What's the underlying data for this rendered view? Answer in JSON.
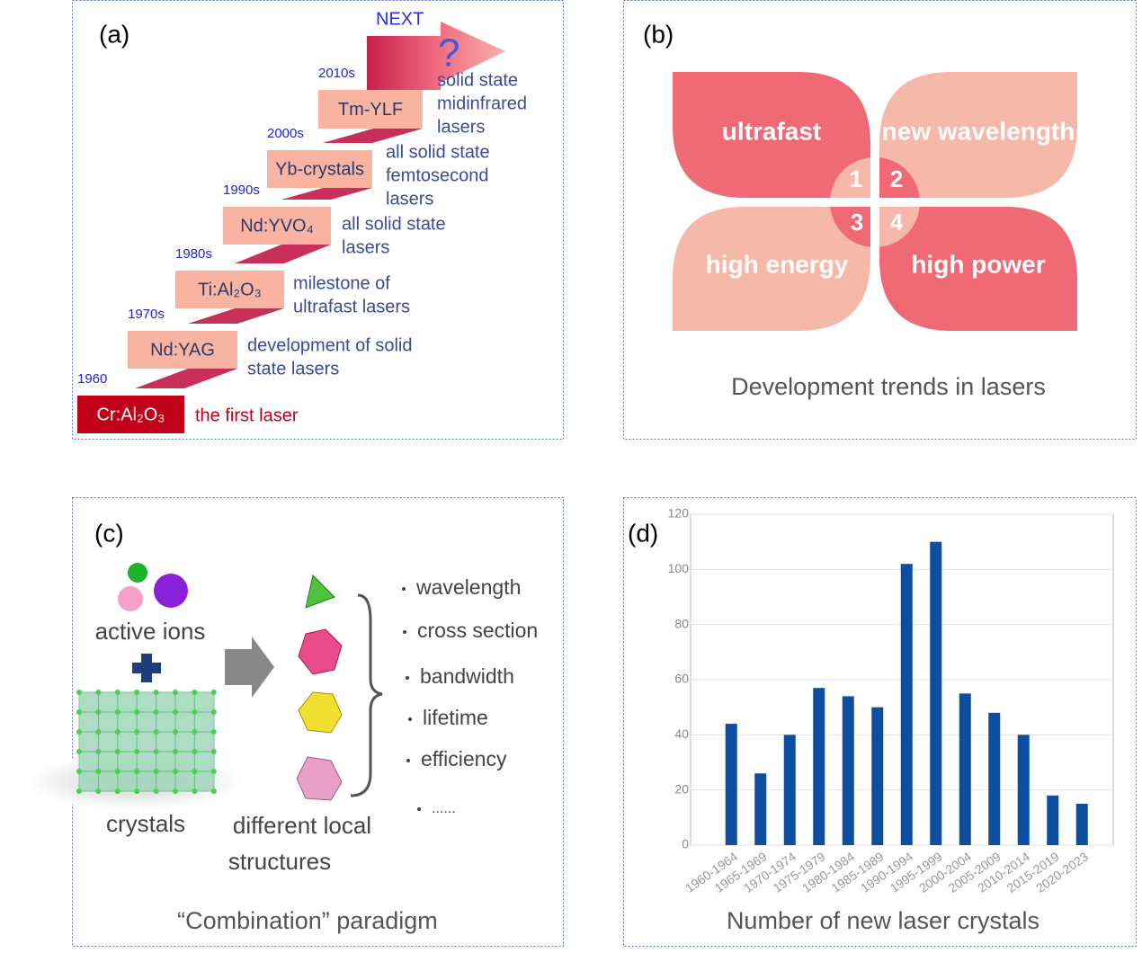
{
  "panels": {
    "a": {
      "label": "(a)",
      "next": "NEXT",
      "question": "?",
      "steps": [
        {
          "year": "1960",
          "name": "Cr:Al₂O₃",
          "desc": [
            "the first laser"
          ]
        },
        {
          "year": "1970s",
          "name": "Nd:YAG",
          "desc": [
            "development of solid",
            "state lasers"
          ]
        },
        {
          "year": "1980s",
          "name": "Ti:Al₂O₃",
          "desc": [
            "milestone of",
            "ultrafast lasers"
          ]
        },
        {
          "year": "1990s",
          "name": "Nd:YVO₄",
          "desc": [
            "all solid state",
            "lasers"
          ]
        },
        {
          "year": "2000s",
          "name": "Yb-crystals",
          "desc": [
            "all solid state",
            "femtosecond",
            "lasers"
          ]
        },
        {
          "year": "2010s",
          "name": "Tm-YLF",
          "desc": [
            "solid state",
            "midinfrared",
            "lasers"
          ]
        }
      ]
    },
    "b": {
      "label": "(b)",
      "petals": [
        "ultrafast",
        "new wavelength",
        "high energy",
        "high power"
      ],
      "numbers": [
        "1",
        "2",
        "3",
        "4"
      ],
      "caption": "Development trends in lasers"
    },
    "c": {
      "label": "(c)",
      "ions": "active ions",
      "crystals": "crystals",
      "structures": [
        "different local",
        "structures"
      ],
      "properties": [
        "wavelength",
        "cross section",
        "bandwidth",
        "lifetime",
        "efficiency",
        "......"
      ],
      "caption": "“Combination” paradigm"
    },
    "d": {
      "label": "(d)"
    }
  },
  "chart_data": {
    "type": "bar",
    "xlabel": "Number of new laser crystals",
    "categories": [
      "1960-1964",
      "1965-1969",
      "1970-1974",
      "1975-1979",
      "1980-1984",
      "1985-1989",
      "1990-1994",
      "1995-1999",
      "2000-2004",
      "2005-2009",
      "2010-2014",
      "2015-2019",
      "2020-2023"
    ],
    "values": [
      44,
      26,
      40,
      57,
      54,
      50,
      102,
      110,
      55,
      48,
      40,
      18,
      15
    ],
    "color": "#0d4ea0",
    "ylim": [
      0,
      120
    ],
    "yticks": [
      0,
      20,
      40,
      60,
      80,
      100,
      120
    ],
    "grid": true
  }
}
